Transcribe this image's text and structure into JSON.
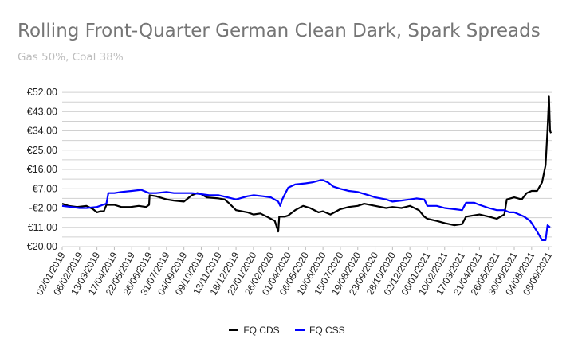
{
  "chart_data": {
    "type": "line",
    "title": "Rolling Front-Quarter German Clean Dark, Spark Spreads",
    "subtitle": "Gas 50%, Coal 38%",
    "ylim": [
      -20,
      55
    ],
    "yticks": [
      -20,
      -11,
      -2,
      7,
      16,
      25,
      34,
      43,
      52
    ],
    "ytick_labels": [
      "-€20.00",
      "-€11.00",
      "-€2.00",
      "€7.00",
      "€16.00",
      "€25.00",
      "€34.00",
      "€43.00",
      "€52.00"
    ],
    "grid": true,
    "legend_position": "bottom",
    "x_start": "2019-01-02",
    "x_end": "2021-09-15",
    "xtick_labels": [
      "02/01/2019",
      "06/02/2019",
      "13/03/2019",
      "17/04/2019",
      "22/05/2019",
      "26/06/2019",
      "31/07/2019",
      "04/09/2019",
      "09/10/2019",
      "13/11/2019",
      "18/12/2019",
      "22/01/2020",
      "26/02/2020",
      "01/04/2020",
      "06/05/2020",
      "10/06/2020",
      "15/07/2020",
      "19/08/2020",
      "23/09/2020",
      "28/10/2020",
      "02/12/2020",
      "06/01/2021",
      "10/02/2021",
      "17/03/2021",
      "21/04/2021",
      "26/05/2021",
      "30/06/2021",
      "04/08/2021",
      "08/09/2021"
    ],
    "series": [
      {
        "name": "FQ CDS",
        "color": "#000000",
        "points": [
          [
            "2019-01-02",
            0
          ],
          [
            "2019-01-15",
            -1
          ],
          [
            "2019-02-01",
            -1.5
          ],
          [
            "2019-02-20",
            -1
          ],
          [
            "2019-03-05",
            -2.5
          ],
          [
            "2019-03-13",
            -4
          ],
          [
            "2019-03-20",
            -3.5
          ],
          [
            "2019-03-27",
            -3.5
          ],
          [
            "2019-04-01",
            -0.5
          ],
          [
            "2019-04-17",
            -0.5
          ],
          [
            "2019-05-01",
            -1.5
          ],
          [
            "2019-05-20",
            -1.5
          ],
          [
            "2019-06-05",
            -1
          ],
          [
            "2019-06-20",
            -1.5
          ],
          [
            "2019-06-26",
            -0.5
          ],
          [
            "2019-06-27",
            4
          ],
          [
            "2019-07-10",
            3.5
          ],
          [
            "2019-07-31",
            2
          ],
          [
            "2019-08-15",
            1.5
          ],
          [
            "2019-09-04",
            1
          ],
          [
            "2019-09-20",
            4
          ],
          [
            "2019-10-01",
            5
          ],
          [
            "2019-10-09",
            4.5
          ],
          [
            "2019-10-20",
            3
          ],
          [
            "2019-11-13",
            2.5
          ],
          [
            "2019-11-25",
            2
          ],
          [
            "2019-12-05",
            0
          ],
          [
            "2019-12-18",
            -3
          ],
          [
            "2020-01-10",
            -4
          ],
          [
            "2020-01-22",
            -5
          ],
          [
            "2020-02-05",
            -4.5
          ],
          [
            "2020-02-18",
            -6
          ],
          [
            "2020-02-26",
            -7
          ],
          [
            "2020-03-05",
            -8
          ],
          [
            "2020-03-12",
            -13
          ],
          [
            "2020-03-14",
            -6
          ],
          [
            "2020-03-25",
            -6
          ],
          [
            "2020-04-01",
            -5.5
          ],
          [
            "2020-04-15",
            -3
          ],
          [
            "2020-05-01",
            -1
          ],
          [
            "2020-05-15",
            -2
          ],
          [
            "2020-06-01",
            -4
          ],
          [
            "2020-06-10",
            -3.5
          ],
          [
            "2020-06-25",
            -5
          ],
          [
            "2020-07-15",
            -2.5
          ],
          [
            "2020-08-01",
            -1.5
          ],
          [
            "2020-08-19",
            -1
          ],
          [
            "2020-09-01",
            0
          ],
          [
            "2020-09-23",
            -1
          ],
          [
            "2020-10-15",
            -2
          ],
          [
            "2020-10-28",
            -1.5
          ],
          [
            "2020-11-15",
            -2
          ],
          [
            "2020-12-02",
            -1
          ],
          [
            "2020-12-20",
            -3
          ],
          [
            "2020-12-31",
            -6
          ],
          [
            "2021-01-06",
            -7
          ],
          [
            "2021-01-25",
            -8
          ],
          [
            "2021-02-10",
            -9
          ],
          [
            "2021-03-01",
            -10
          ],
          [
            "2021-03-17",
            -9.5
          ],
          [
            "2021-03-25",
            -6
          ],
          [
            "2021-04-21",
            -5
          ],
          [
            "2021-05-10",
            -6
          ],
          [
            "2021-05-26",
            -7
          ],
          [
            "2021-06-10",
            -5
          ],
          [
            "2021-06-15",
            2
          ],
          [
            "2021-06-30",
            3
          ],
          [
            "2021-07-15",
            2
          ],
          [
            "2021-07-25",
            5
          ],
          [
            "2021-08-04",
            6
          ],
          [
            "2021-08-15",
            6
          ],
          [
            "2021-08-25",
            10
          ],
          [
            "2021-09-01",
            18
          ],
          [
            "2021-09-05",
            35
          ],
          [
            "2021-09-08",
            50
          ],
          [
            "2021-09-10",
            34
          ],
          [
            "2021-09-12",
            33
          ]
        ]
      },
      {
        "name": "FQ CSS",
        "color": "#0000ff",
        "points": [
          [
            "2019-01-02",
            -1
          ],
          [
            "2019-01-20",
            -1.5
          ],
          [
            "2019-02-06",
            -2
          ],
          [
            "2019-02-20",
            -2
          ],
          [
            "2019-03-13",
            -1.5
          ],
          [
            "2019-03-25",
            -0.5
          ],
          [
            "2019-04-01",
            0
          ],
          [
            "2019-04-05",
            5
          ],
          [
            "2019-04-17",
            5
          ],
          [
            "2019-05-01",
            5.5
          ],
          [
            "2019-05-22",
            6
          ],
          [
            "2019-06-10",
            6.5
          ],
          [
            "2019-06-26",
            5
          ],
          [
            "2019-07-10",
            5
          ],
          [
            "2019-07-31",
            5.5
          ],
          [
            "2019-08-15",
            5
          ],
          [
            "2019-09-04",
            5
          ],
          [
            "2019-09-20",
            5
          ],
          [
            "2019-10-09",
            4.5
          ],
          [
            "2019-10-25",
            4
          ],
          [
            "2019-11-13",
            4
          ],
          [
            "2019-12-01",
            3
          ],
          [
            "2019-12-18",
            2
          ],
          [
            "2020-01-10",
            3.5
          ],
          [
            "2020-01-22",
            4
          ],
          [
            "2020-02-10",
            3.5
          ],
          [
            "2020-02-26",
            3
          ],
          [
            "2020-03-12",
            1
          ],
          [
            "2020-03-16",
            -1
          ],
          [
            "2020-03-20",
            2
          ],
          [
            "2020-04-01",
            7.5
          ],
          [
            "2020-04-15",
            9
          ],
          [
            "2020-05-06",
            9.5
          ],
          [
            "2020-05-20",
            10
          ],
          [
            "2020-06-05",
            11
          ],
          [
            "2020-06-10",
            11
          ],
          [
            "2020-06-20",
            10
          ],
          [
            "2020-07-01",
            8
          ],
          [
            "2020-07-15",
            7
          ],
          [
            "2020-08-01",
            6
          ],
          [
            "2020-08-19",
            5.5
          ],
          [
            "2020-09-10",
            4
          ],
          [
            "2020-09-23",
            3
          ],
          [
            "2020-10-15",
            2
          ],
          [
            "2020-10-28",
            1
          ],
          [
            "2020-11-15",
            1.5
          ],
          [
            "2020-12-02",
            2
          ],
          [
            "2020-12-15",
            2.5
          ],
          [
            "2020-12-31",
            2
          ],
          [
            "2021-01-06",
            -1
          ],
          [
            "2021-01-25",
            -1
          ],
          [
            "2021-02-10",
            -2
          ],
          [
            "2021-03-01",
            -2.5
          ],
          [
            "2021-03-17",
            -3
          ],
          [
            "2021-03-25",
            0.5
          ],
          [
            "2021-04-10",
            0.5
          ],
          [
            "2021-04-21",
            -0.5
          ],
          [
            "2021-05-10",
            -2
          ],
          [
            "2021-05-26",
            -3
          ],
          [
            "2021-06-10",
            -3
          ],
          [
            "2021-06-20",
            -4
          ],
          [
            "2021-06-30",
            -4
          ],
          [
            "2021-07-20",
            -6
          ],
          [
            "2021-08-01",
            -8
          ],
          [
            "2021-08-04",
            -9
          ],
          [
            "2021-08-15",
            -13
          ],
          [
            "2021-08-25",
            -17
          ],
          [
            "2021-09-01",
            -17
          ],
          [
            "2021-09-05",
            -10
          ],
          [
            "2021-09-10",
            -11
          ]
        ]
      }
    ]
  }
}
